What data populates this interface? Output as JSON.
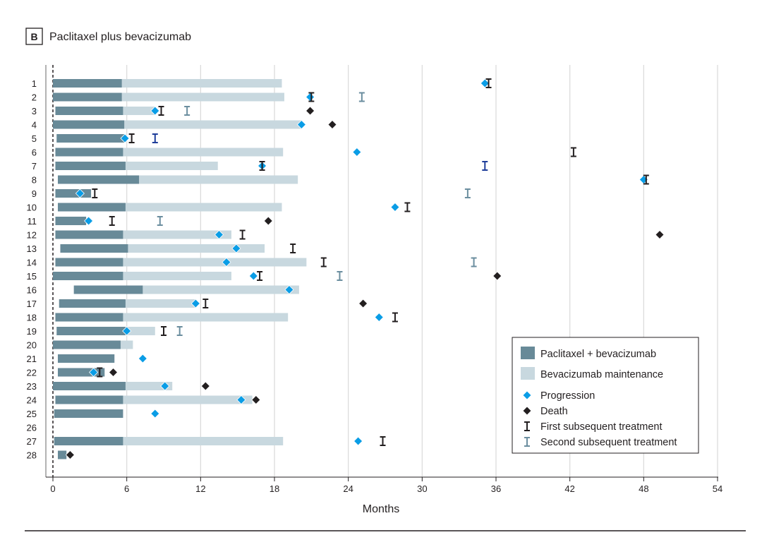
{
  "panel": {
    "letter": "B",
    "title": "Paclitaxel plus bevacizumab"
  },
  "chart_data": {
    "type": "swimmer",
    "xlabel": "Months",
    "xlim": [
      0,
      54
    ],
    "xticks": [
      0,
      6,
      12,
      18,
      24,
      30,
      36,
      42,
      48,
      54
    ],
    "grid": "vertical",
    "legend_placement": "bottom-right",
    "colors": {
      "paclitaxel_bev": "#688a98",
      "bev_maint": "#c8d8df",
      "progression": "#0a9de6",
      "death": "#231f20",
      "first_tx": "#231f20",
      "second_tx": "#6b8e9f",
      "other_tx": "#1f3e9a"
    },
    "legend": [
      "Paclitaxel + bevacizumab",
      "Bevacizumab maintenance",
      "Progression",
      "Death",
      "First subsequent treatment",
      "Second subsequent treatment"
    ],
    "patients": [
      {
        "id": "1",
        "start": 0,
        "combo_end": 5.6,
        "maint_end": 18.6,
        "progression": 35.1,
        "first_tx": 35.4
      },
      {
        "id": "2",
        "start": 0,
        "combo_end": 5.6,
        "maint_end": 18.8,
        "progression": 20.9,
        "first_tx": 21.0,
        "second_tx": 25.1
      },
      {
        "id": "3",
        "start": 0.2,
        "combo_end": 5.7,
        "maint_end": 8.3,
        "progression": 8.3,
        "first_tx": 8.8,
        "second_tx": 10.9,
        "death": 20.9
      },
      {
        "id": "4",
        "start": 0,
        "combo_end": 5.8,
        "maint_end": 20.2,
        "progression": 20.2,
        "death": 22.7
      },
      {
        "id": "5",
        "start": 0.3,
        "combo_end": 5.8,
        "progression": 5.85,
        "first_tx": 6.4,
        "second_tx": 8.3,
        "second_tx_color": "#1f3e9a"
      },
      {
        "id": "6",
        "start": 0.2,
        "combo_end": 5.7,
        "maint_end": 18.7,
        "progression": 24.7,
        "first_tx": 42.3
      },
      {
        "id": "7",
        "start": 0.2,
        "combo_end": 5.9,
        "maint_end": 13.4,
        "progression": 17.0,
        "first_tx": 17.0,
        "second_tx": 35.1,
        "second_tx_color": "#1f3e9a"
      },
      {
        "id": "8",
        "start": 0.4,
        "combo_end": 7.0,
        "maint_end": 19.9,
        "progression": 48.0,
        "first_tx": 48.2
      },
      {
        "id": "9",
        "start": 0.2,
        "combo_end": 3.1,
        "progression": 2.2,
        "first_tx": 3.4,
        "second_tx": 33.7
      },
      {
        "id": "10",
        "start": 0.4,
        "combo_end": 5.9,
        "maint_end": 18.6,
        "progression": 27.8,
        "first_tx": 28.8
      },
      {
        "id": "11",
        "start": 0.2,
        "combo_end": 2.7,
        "progression": 2.9,
        "first_tx": 4.8,
        "second_tx": 8.7,
        "death": 17.5
      },
      {
        "id": "12",
        "start": 0.2,
        "combo_end": 5.7,
        "maint_end": 14.5,
        "progression": 13.5,
        "first_tx": 15.4,
        "death": 49.3
      },
      {
        "id": "13",
        "start": 0.6,
        "combo_end": 6.1,
        "maint_end": 17.2,
        "progression": 14.9,
        "first_tx": 19.5
      },
      {
        "id": "14",
        "start": 0.2,
        "combo_end": 5.7,
        "maint_end": 20.6,
        "progression": 14.1,
        "first_tx": 22.0,
        "second_tx": 34.2
      },
      {
        "id": "15",
        "start": 0,
        "combo_end": 5.7,
        "maint_end": 14.5,
        "progression": 16.3,
        "first_tx": 16.8,
        "second_tx": 23.3,
        "death": 36.1
      },
      {
        "id": "16",
        "start": 1.7,
        "combo_end": 7.3,
        "maint_end": 20.0,
        "progression": 19.2
      },
      {
        "id": "17",
        "start": 0.5,
        "combo_end": 5.9,
        "maint_end": 11.6,
        "progression": 11.6,
        "first_tx": 12.4,
        "death": 25.2
      },
      {
        "id": "18",
        "start": 0.2,
        "combo_end": 5.7,
        "maint_end": 19.1,
        "progression": 26.5,
        "first_tx": 27.8
      },
      {
        "id": "19",
        "start": 0.3,
        "combo_end": 5.9,
        "maint_end": 8.3,
        "progression": 6.0,
        "first_tx": 9.0,
        "second_tx": 10.3
      },
      {
        "id": "20",
        "start": 0,
        "combo_end": 5.5,
        "maint_end": 6.5
      },
      {
        "id": "21",
        "start": 0.4,
        "combo_end": 5.0,
        "progression": 7.3
      },
      {
        "id": "22",
        "start": 0.4,
        "combo_end": 4.2,
        "progression": 3.3,
        "first_tx": 3.8,
        "death": 4.9
      },
      {
        "id": "23",
        "start": 0,
        "combo_end": 5.9,
        "maint_end": 9.7,
        "progression": 9.1,
        "death": 12.4
      },
      {
        "id": "24",
        "start": 0.2,
        "combo_end": 5.7,
        "maint_end": 16.2,
        "progression": 15.3,
        "death": 16.5
      },
      {
        "id": "25",
        "start": 0.1,
        "combo_end": 5.7,
        "progression": 8.3
      },
      {
        "id": "26"
      },
      {
        "id": "27",
        "start": 0.1,
        "combo_end": 5.7,
        "maint_end": 18.7,
        "progression": 24.8,
        "first_tx": 26.8
      },
      {
        "id": "28",
        "start": 0.4,
        "combo_end": 1.1,
        "death": 1.4
      }
    ]
  }
}
